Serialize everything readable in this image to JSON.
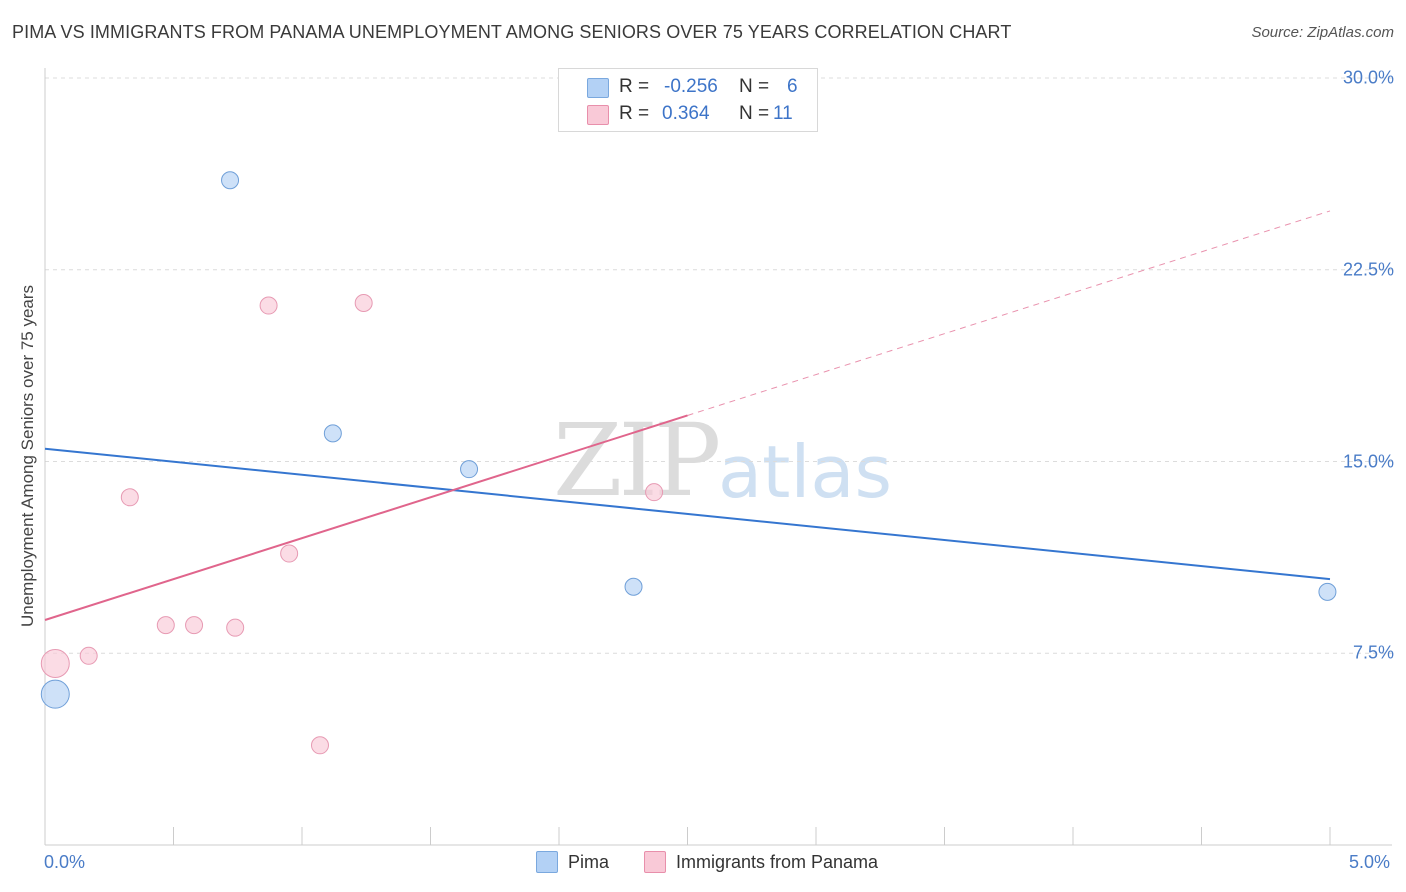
{
  "title": "PIMA VS IMMIGRANTS FROM PANAMA UNEMPLOYMENT AMONG SENIORS OVER 75 YEARS CORRELATION CHART",
  "source": "Source: ZipAtlas.com",
  "watermark": {
    "zip": "ZIP",
    "atlas": "atlas"
  },
  "legend": {
    "rows": [
      {
        "r_label": "R =",
        "r_value": "-0.256",
        "n_label": "N =",
        "n_value": "6",
        "color": "#b3d1f5",
        "border": "#7aa8de"
      },
      {
        "r_label": "R =",
        "r_value": "0.364",
        "n_label": "N =",
        "n_value": "11",
        "color": "#f9c9d7",
        "border": "#e88fab"
      }
    ]
  },
  "bottom_legend": {
    "pima": "Pima",
    "panama": "Immigrants from Panama"
  },
  "chart_data": {
    "type": "scatter",
    "title": "PIMA VS IMMIGRANTS FROM PANAMA UNEMPLOYMENT AMONG SENIORS OVER 75 YEARS CORRELATION CHART",
    "xlabel": "",
    "ylabel": "Unemployment Among Seniors over 75 years",
    "xlim": [
      0,
      5.0
    ],
    "ylim": [
      0,
      30.0
    ],
    "x_tick_labels": [
      "0.0%",
      "5.0%"
    ],
    "y_ticks": [
      7.5,
      15.0,
      22.5,
      30.0
    ],
    "y_tick_labels": [
      "7.5%",
      "15.0%",
      "22.5%",
      "30.0%"
    ],
    "series": [
      {
        "name": "Pima",
        "color": "#b3d1f5",
        "stroke": "#6f9fd8",
        "line_color": "#3576d0",
        "trend": {
          "x0": 0.0,
          "y0": 15.5,
          "x1": 5.0,
          "y1": 10.4,
          "solid_until": 5.0
        },
        "points": [
          {
            "x": 0.04,
            "y": 5.9,
            "big": true
          },
          {
            "x": 0.72,
            "y": 26.0
          },
          {
            "x": 1.12,
            "y": 16.1
          },
          {
            "x": 1.65,
            "y": 14.7
          },
          {
            "x": 2.29,
            "y": 10.1
          },
          {
            "x": 4.99,
            "y": 9.9
          }
        ]
      },
      {
        "name": "Immigrants from Panama",
        "color": "#f9c9d7",
        "stroke": "#e79ab3",
        "line_color": "#e0658c",
        "trend": {
          "x0": 0.0,
          "y0": 8.8,
          "x1": 5.0,
          "y1": 24.8,
          "solid_until": 2.5
        },
        "points": [
          {
            "x": 0.04,
            "y": 7.1,
            "big": true
          },
          {
            "x": 0.17,
            "y": 7.4
          },
          {
            "x": 0.33,
            "y": 13.6
          },
          {
            "x": 0.47,
            "y": 8.6
          },
          {
            "x": 0.58,
            "y": 8.6
          },
          {
            "x": 0.74,
            "y": 8.5
          },
          {
            "x": 0.87,
            "y": 21.1
          },
          {
            "x": 0.95,
            "y": 11.4
          },
          {
            "x": 1.07,
            "y": 3.9
          },
          {
            "x": 1.24,
            "y": 21.2
          },
          {
            "x": 2.37,
            "y": 13.8
          }
        ]
      }
    ]
  }
}
